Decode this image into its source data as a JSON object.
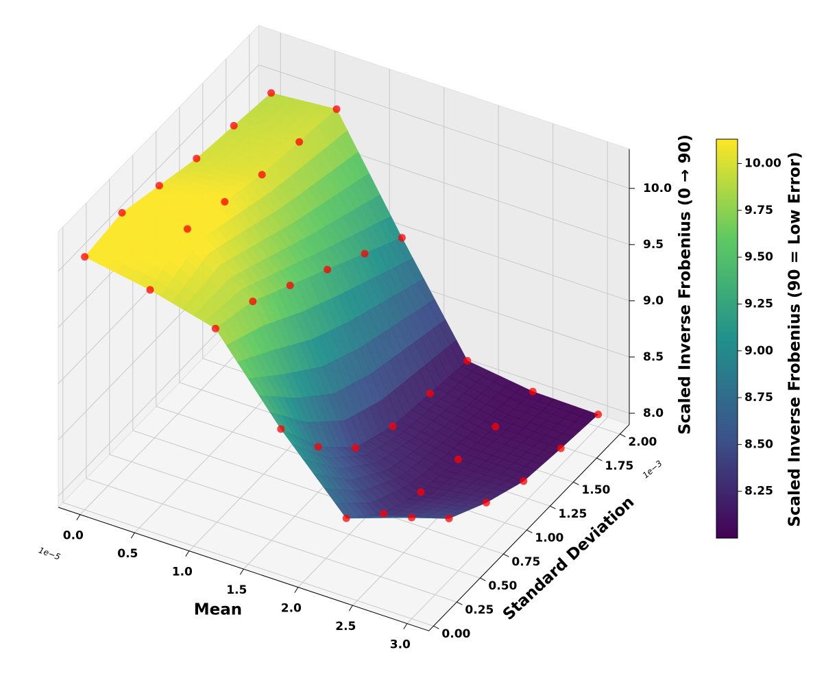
{
  "chart_data": {
    "type": "surface3d",
    "x_label": "Mean",
    "y_label": "Standard Deviation",
    "z_label": "Scaled Inverse Frobenius (0 → 90)",
    "colorbar_label": "Scaled Inverse Frobenius (90 = Low Error)",
    "x_offset_label": "1e−5",
    "y_offset_label": "1e−3",
    "x": [
      0,
      0.6,
      1.2,
      1.8,
      2.4,
      3.0
    ],
    "y": [
      0,
      0.4,
      0.8,
      1.2,
      1.6,
      2.0
    ],
    "z": [
      [
        10.15,
        10.2,
        10.1,
        10.0,
        9.95,
        9.9
      ],
      [
        10.05,
        10.25,
        10.15,
        10.05,
        10.0,
        9.95
      ],
      [
        9.9,
        9.8,
        9.6,
        9.4,
        9.2,
        9.0
      ],
      [
        9.2,
        8.7,
        8.35,
        8.2,
        8.15,
        8.1
      ],
      [
        8.6,
        8.3,
        8.15,
        8.1,
        8.05,
        8.02
      ],
      [
        8.8,
        8.45,
        8.25,
        8.1,
        8.05,
        8.01
      ]
    ],
    "colormap": "viridis",
    "point_color": "#ff0000",
    "xlim": [
      -0.2,
      3.2
    ],
    "ylim": [
      -0.05,
      2.1
    ],
    "zlim": [
      7.9,
      10.35
    ],
    "clim": [
      8.0,
      10.13
    ],
    "xticks": [
      {
        "value": 0,
        "label": "0.0"
      },
      0.5,
      {
        "value": 1,
        "label": "1.0"
      },
      1.5,
      {
        "value": 2,
        "label": "2.0"
      },
      2.5,
      {
        "value": 3,
        "label": "3.0"
      }
    ],
    "yticks": [
      {
        "value": 0,
        "label": "0.00"
      },
      0.25,
      {
        "value": 0.5,
        "label": "0.50"
      },
      0.75,
      {
        "value": 1,
        "label": "1.00"
      },
      1.25,
      {
        "value": 1.5,
        "label": "1.50"
      },
      1.75,
      {
        "value": 2,
        "label": "2.00"
      }
    ],
    "zticks": [
      {
        "value": 8,
        "label": "8.0"
      },
      8.5,
      {
        "value": 9,
        "label": "9.0"
      },
      9.5,
      {
        "value": 10,
        "label": "10.0"
      }
    ],
    "cticks": [
      8.25,
      {
        "value": 8.5,
        "label": "8.50"
      },
      8.75,
      {
        "value": 9,
        "label": "9.00"
      },
      9.25,
      {
        "value": 9.5,
        "label": "9.50"
      },
      9.75,
      {
        "value": 10,
        "label": "10.00"
      }
    ],
    "grid": true
  }
}
